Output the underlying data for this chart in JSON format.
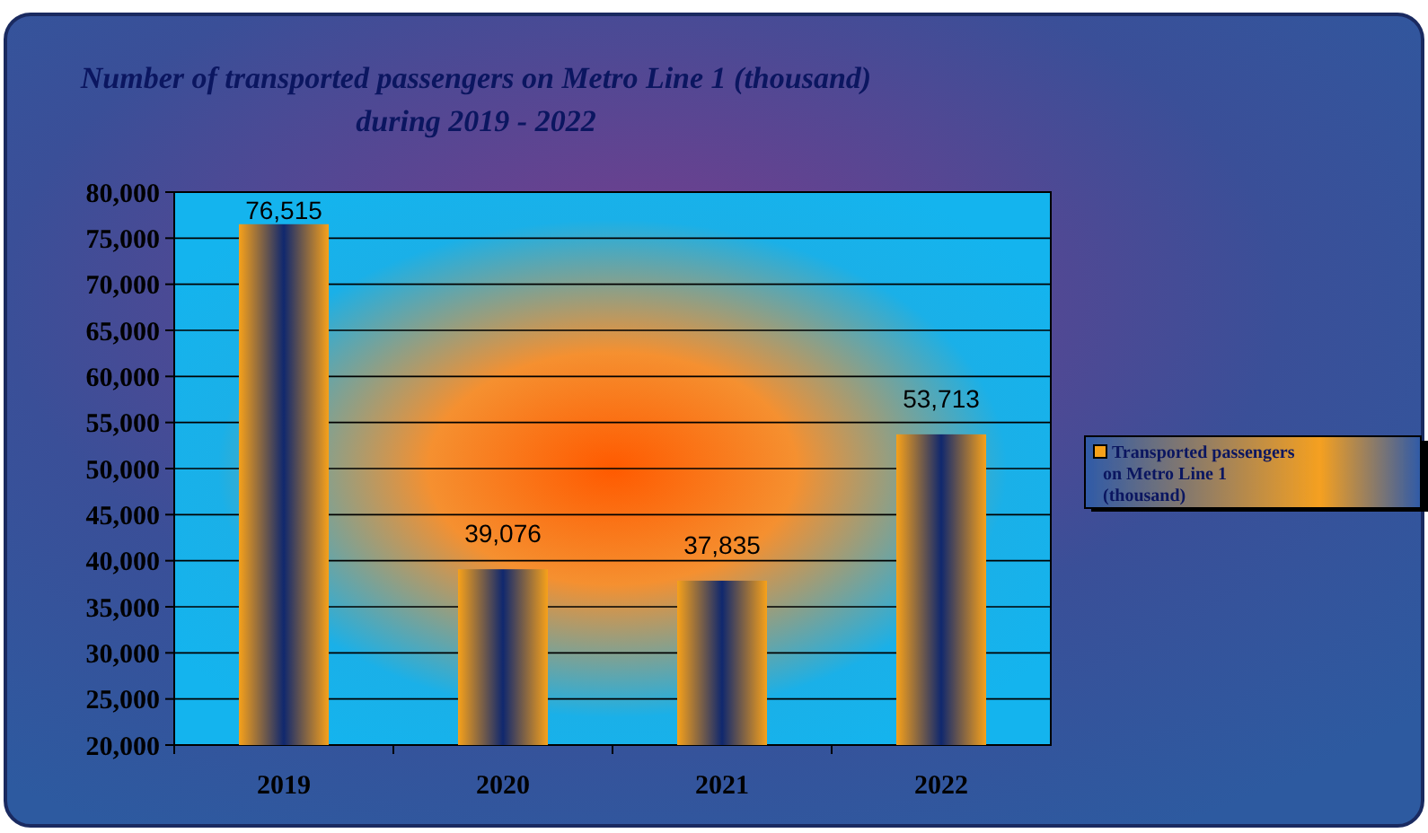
{
  "chart_data": {
    "type": "bar",
    "title": "Number of transported passengers on Metro Line 1 (thousand)\nduring 2019 - 2022",
    "categories": [
      "2019",
      "2020",
      "2021",
      "2022"
    ],
    "series": [
      {
        "name": "Transported passengers on Metro Line 1 (thousand)",
        "color": "#f7a11a",
        "values": [
          76515,
          39076,
          37835,
          53713
        ],
        "value_labels": [
          "76,515",
          "39,076",
          "37,835",
          "53,713"
        ]
      }
    ],
    "ylim": [
      20000,
      80000
    ],
    "yticks": [
      {
        "value": 20000,
        "label": "20,000"
      },
      {
        "value": 25000,
        "label": "25,000"
      },
      {
        "value": 30000,
        "label": "30,000"
      },
      {
        "value": 35000,
        "label": "35,000"
      },
      {
        "value": 40000,
        "label": "40,000"
      },
      {
        "value": 45000,
        "label": "45,000"
      },
      {
        "value": 50000,
        "label": "50,000"
      },
      {
        "value": 55000,
        "label": "55,000"
      },
      {
        "value": 60000,
        "label": "60,000"
      },
      {
        "value": 65000,
        "label": "65,000"
      },
      {
        "value": 70000,
        "label": "70,000"
      },
      {
        "value": 75000,
        "label": "75,000"
      },
      {
        "value": 80000,
        "label": "80,000"
      }
    ],
    "grid": "y",
    "legend": "right"
  }
}
